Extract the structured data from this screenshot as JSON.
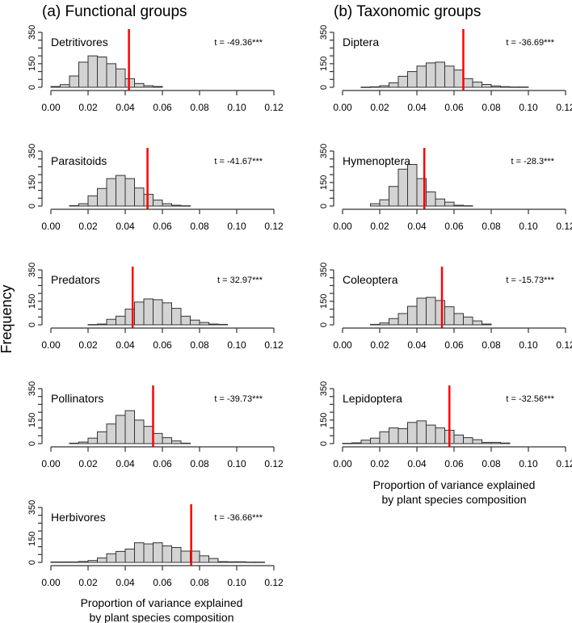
{
  "chart_data": {
    "type": "bar",
    "column_titles": [
      "(a) Functional groups",
      "(b) Taxonomic groups"
    ],
    "ylabel": "Frequency",
    "xlabel": [
      "Proportion of variance explained",
      "by plant species composition"
    ],
    "x_ticks": [
      "0.00",
      "0.02",
      "0.04",
      "0.06",
      "0.08",
      "0.10",
      "0.12"
    ],
    "y_ticks": [
      "0",
      "150",
      "350"
    ],
    "xlim": [
      0,
      0.12
    ],
    "ylim": [
      0,
      350
    ],
    "bin_width": 0.005,
    "observed_line_color": "#ff0000",
    "bar_fill": "#d3d3d3",
    "panels": [
      {
        "column": 0,
        "row": 0,
        "name": "Detritivores",
        "t_label": "t = -49.36***",
        "observed": 0.042,
        "bin_start": 0.0,
        "counts": [
          5,
          17,
          72,
          160,
          200,
          193,
          150,
          117,
          55,
          24,
          10,
          5
        ]
      },
      {
        "column": 0,
        "row": 1,
        "name": "Parasitoids",
        "t_label": "t = -41.67***",
        "observed": 0.052,
        "bin_start": 0.01,
        "counts": [
          3,
          15,
          65,
          112,
          175,
          195,
          175,
          115,
          75,
          38,
          15,
          5,
          2
        ]
      },
      {
        "column": 0,
        "row": 2,
        "name": "Predators",
        "t_label": "t = 32.97***",
        "observed": 0.044,
        "bin_start": 0.02,
        "counts": [
          2,
          5,
          35,
          55,
          100,
          145,
          165,
          160,
          140,
          105,
          55,
          30,
          15,
          5,
          3
        ]
      },
      {
        "column": 0,
        "row": 3,
        "name": "Pollinators",
        "t_label": "t = -39.73***",
        "observed": 0.055,
        "bin_start": 0.01,
        "counts": [
          3,
          10,
          35,
          75,
          125,
          180,
          210,
          150,
          110,
          65,
          38,
          17,
          3
        ]
      },
      {
        "column": 0,
        "row": 4,
        "name": "Herbivores",
        "t_label": "t = -36.66***",
        "observed": 0.0755,
        "bin_start": 0.0,
        "counts": [
          3,
          3,
          3,
          6,
          12,
          28,
          55,
          70,
          85,
          125,
          118,
          125,
          105,
          95,
          72,
          72,
          42,
          25,
          5,
          4,
          4,
          2,
          2
        ]
      },
      {
        "column": 1,
        "row": 0,
        "name": "Diptera",
        "t_label": "t = -36.69***",
        "observed": 0.065,
        "bin_start": 0.01,
        "counts": [
          1,
          3,
          10,
          28,
          70,
          100,
          135,
          155,
          160,
          135,
          110,
          55,
          33,
          18,
          8,
          4,
          2,
          2
        ]
      },
      {
        "column": 1,
        "row": 1,
        "name": "Hymenoptera",
        "t_label": "t = -28.3***",
        "observed": 0.044,
        "bin_start": 0.015,
        "counts": [
          15,
          40,
          125,
          235,
          265,
          175,
          90,
          45,
          25,
          5,
          2
        ]
      },
      {
        "column": 1,
        "row": 2,
        "name": "Coleoptera",
        "t_label": "t = -15.73***",
        "observed": 0.0535,
        "bin_start": 0.015,
        "counts": [
          3,
          12,
          40,
          72,
          118,
          170,
          175,
          155,
          115,
          72,
          50,
          25,
          5
        ]
      },
      {
        "column": 1,
        "row": 3,
        "name": "Lepidoptera",
        "t_label": "t = -32.56***",
        "observed": 0.0575,
        "bin_start": 0.0,
        "counts": [
          2,
          5,
          22,
          35,
          75,
          100,
          95,
          135,
          145,
          118,
          100,
          85,
          55,
          38,
          25,
          8,
          8,
          4
        ]
      }
    ]
  }
}
